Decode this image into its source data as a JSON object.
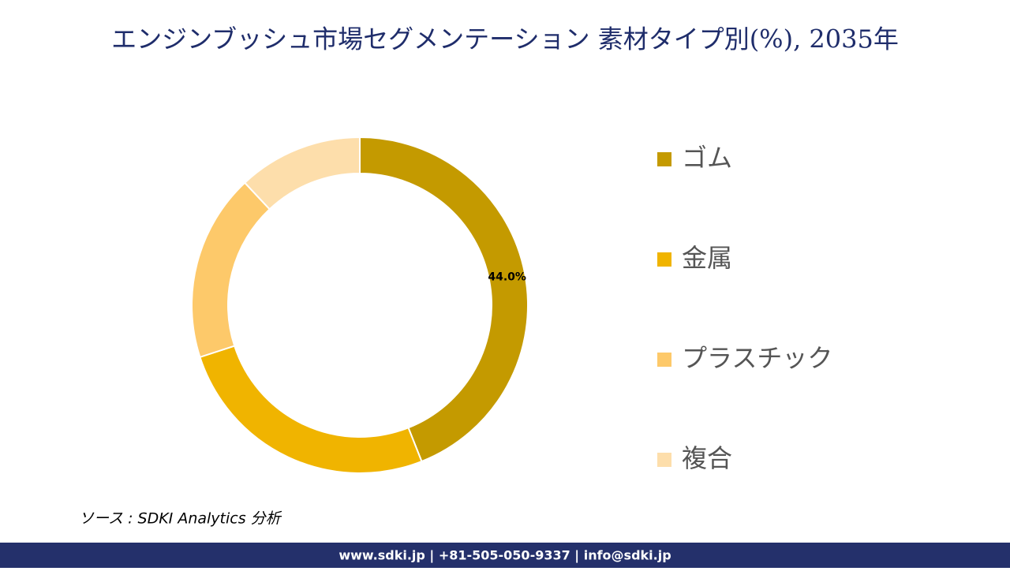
{
  "chart_data": {
    "type": "donut",
    "title": "エンジンブッシュ市場セグメンテーション 素材タイプ別(%), 2035年",
    "categories": [
      "ゴム",
      "金属",
      "プラスチック",
      "複合"
    ],
    "values": [
      44,
      26,
      18,
      12
    ],
    "value_labels": [
      "44.0%",
      null,
      null,
      null
    ],
    "colors": [
      "#c49a00",
      "#f0b400",
      "#fdc96a",
      "#fddeab"
    ],
    "legend": "right"
  },
  "source": "ソース : SDKI Analytics 分析",
  "footer": "www.sdki.jp | +81-505-050-9337 | info@sdki.jp"
}
